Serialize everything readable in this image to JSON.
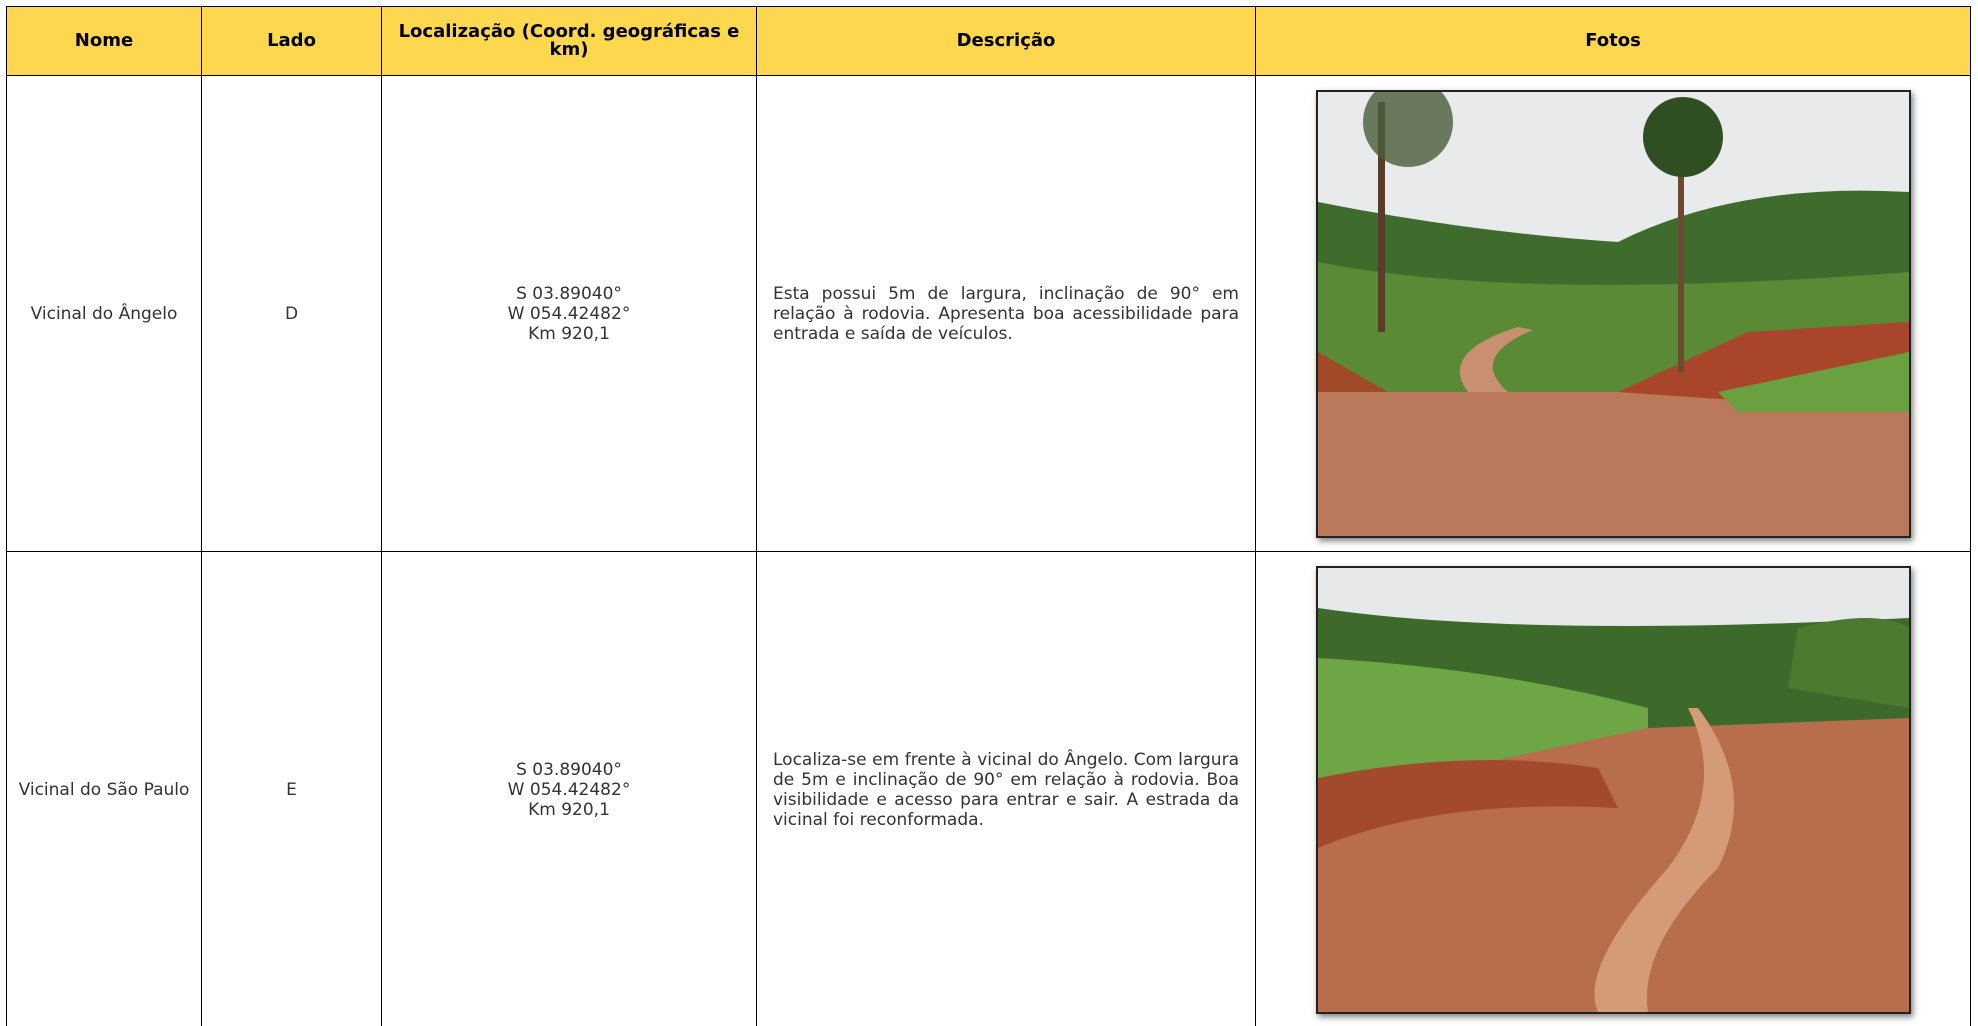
{
  "table": {
    "header": [
      "Nome",
      "Lado",
      "Localização (Coord. geográficas e km)",
      "Descrição",
      "Fotos"
    ],
    "rows": [
      {
        "nome": "Vicinal do Ângelo",
        "lado": "D",
        "local": [
          "S 03.89040°",
          "W 054.42482°",
          "Km 920,1"
        ],
        "descricao": "Esta possui 5m de largura, inclinação de 90° em relação à rodovia. Apresenta boa acessibilidade para entrada e saída de veículos."
      },
      {
        "nome": "Vicinal do São Paulo",
        "lado": "E",
        "local": [
          "S 03.89040°",
          "W 054.42482°",
          "Km 920,1"
        ],
        "descricao": "Localiza-se em frente à vicinal do Ângelo. Com largura de 5m e inclinação de 90° em relação à rodovia. Boa visibilidade e acesso para entrar e sair. A estrada da vicinal foi reconformada."
      }
    ]
  }
}
